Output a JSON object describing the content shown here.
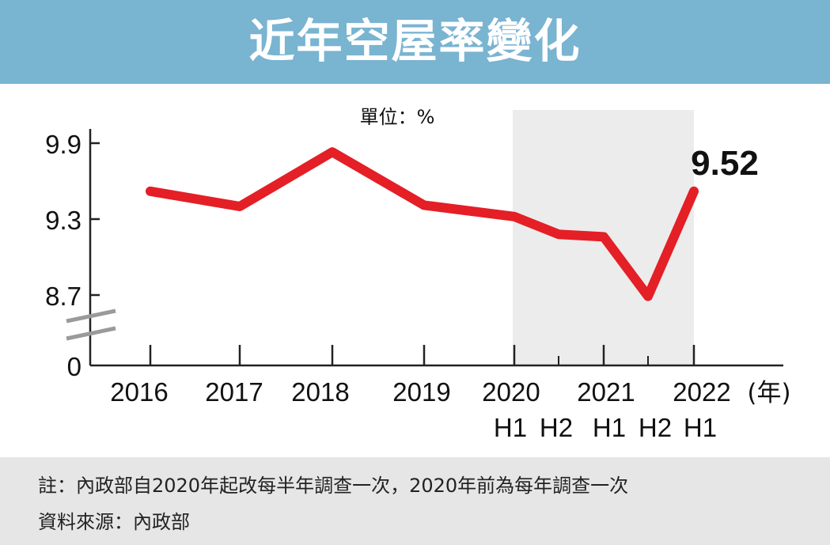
{
  "title": "近年空屋率變化",
  "notes": {
    "line1": "註：內政部自2020年起改每半年調查一次，2020年前為每年調查一次",
    "line2": "資料來源：內政部"
  },
  "colors": {
    "header": "#79b4d1",
    "line": "#e41f26",
    "highlight": "#ececec",
    "footer": "#e6e6e6"
  },
  "chart_data": {
    "type": "line",
    "unit_label": "單位：%",
    "x_unit": "(年)",
    "x": [
      "2016",
      "2017",
      "2018",
      "2019",
      "2020 H1",
      "2020 H2",
      "2021 H1",
      "2021 H2",
      "2022 H1"
    ],
    "values": [
      9.52,
      9.4,
      9.83,
      9.41,
      9.32,
      9.18,
      9.16,
      8.69,
      9.52
    ],
    "yticks": [
      "9.9",
      "9.3",
      "8.7",
      "0"
    ],
    "axis_break": true,
    "x_tick_labels": [
      "2016",
      "2017",
      "2018",
      "2019",
      "2020",
      "2021",
      "2022"
    ],
    "half_labels": [
      "H1",
      "H2",
      "H1",
      "H2",
      "H1"
    ],
    "highlight_label": "9.52",
    "shaded_region": [
      "2020 H1",
      "2022 H1"
    ],
    "ylim": [
      8.7,
      9.9
    ]
  }
}
